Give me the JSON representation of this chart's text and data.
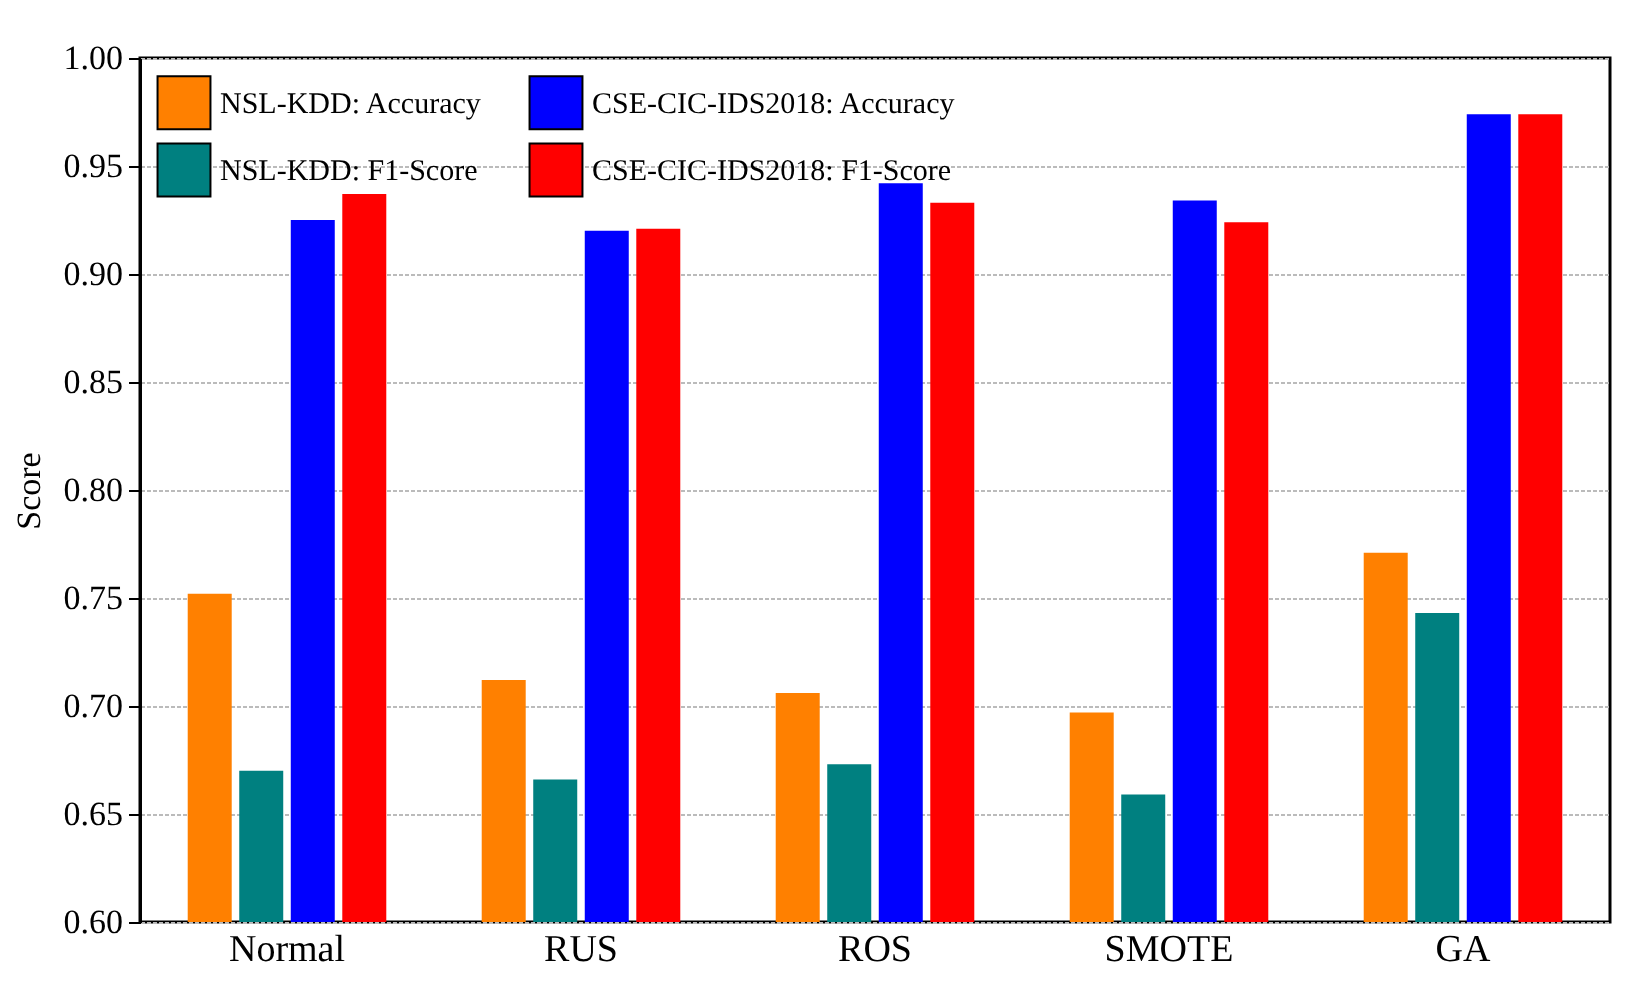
{
  "chart_data": {
    "type": "bar",
    "ylabel": "Score",
    "categories": [
      "Normal",
      "RUS",
      "ROS",
      "SMOTE",
      "GA"
    ],
    "series": [
      {
        "name": "NSL-KDD: Accuracy",
        "color": "#ff8000",
        "values": [
          0.752,
          0.712,
          0.706,
          0.697,
          0.771
        ]
      },
      {
        "name": "NSL-KDD: F1-Score",
        "color": "#008080",
        "values": [
          0.67,
          0.666,
          0.673,
          0.659,
          0.743
        ]
      },
      {
        "name": "CSE-CIC-IDS2018: Accuracy",
        "color": "#0000ff",
        "values": [
          0.925,
          0.92,
          0.942,
          0.934,
          0.974
        ]
      },
      {
        "name": "CSE-CIC-IDS2018: F1-Score",
        "color": "#ff0000",
        "values": [
          0.937,
          0.921,
          0.933,
          0.924,
          0.974
        ]
      }
    ],
    "ylim": [
      0.6,
      1.0
    ],
    "yticks": [
      {
        "value": 0.6,
        "label": "0.60"
      },
      {
        "value": 0.65,
        "label": "0.65"
      },
      {
        "value": 0.7,
        "label": "0.70"
      },
      {
        "value": 0.75,
        "label": "0.75"
      },
      {
        "value": 0.8,
        "label": "0.80"
      },
      {
        "value": 0.85,
        "label": "0.85"
      },
      {
        "value": 0.9,
        "label": "0.90"
      },
      {
        "value": 0.95,
        "label": "0.95"
      },
      {
        "value": 1.0,
        "label": "1.00"
      }
    ],
    "grid": "y",
    "legend": "top left"
  }
}
